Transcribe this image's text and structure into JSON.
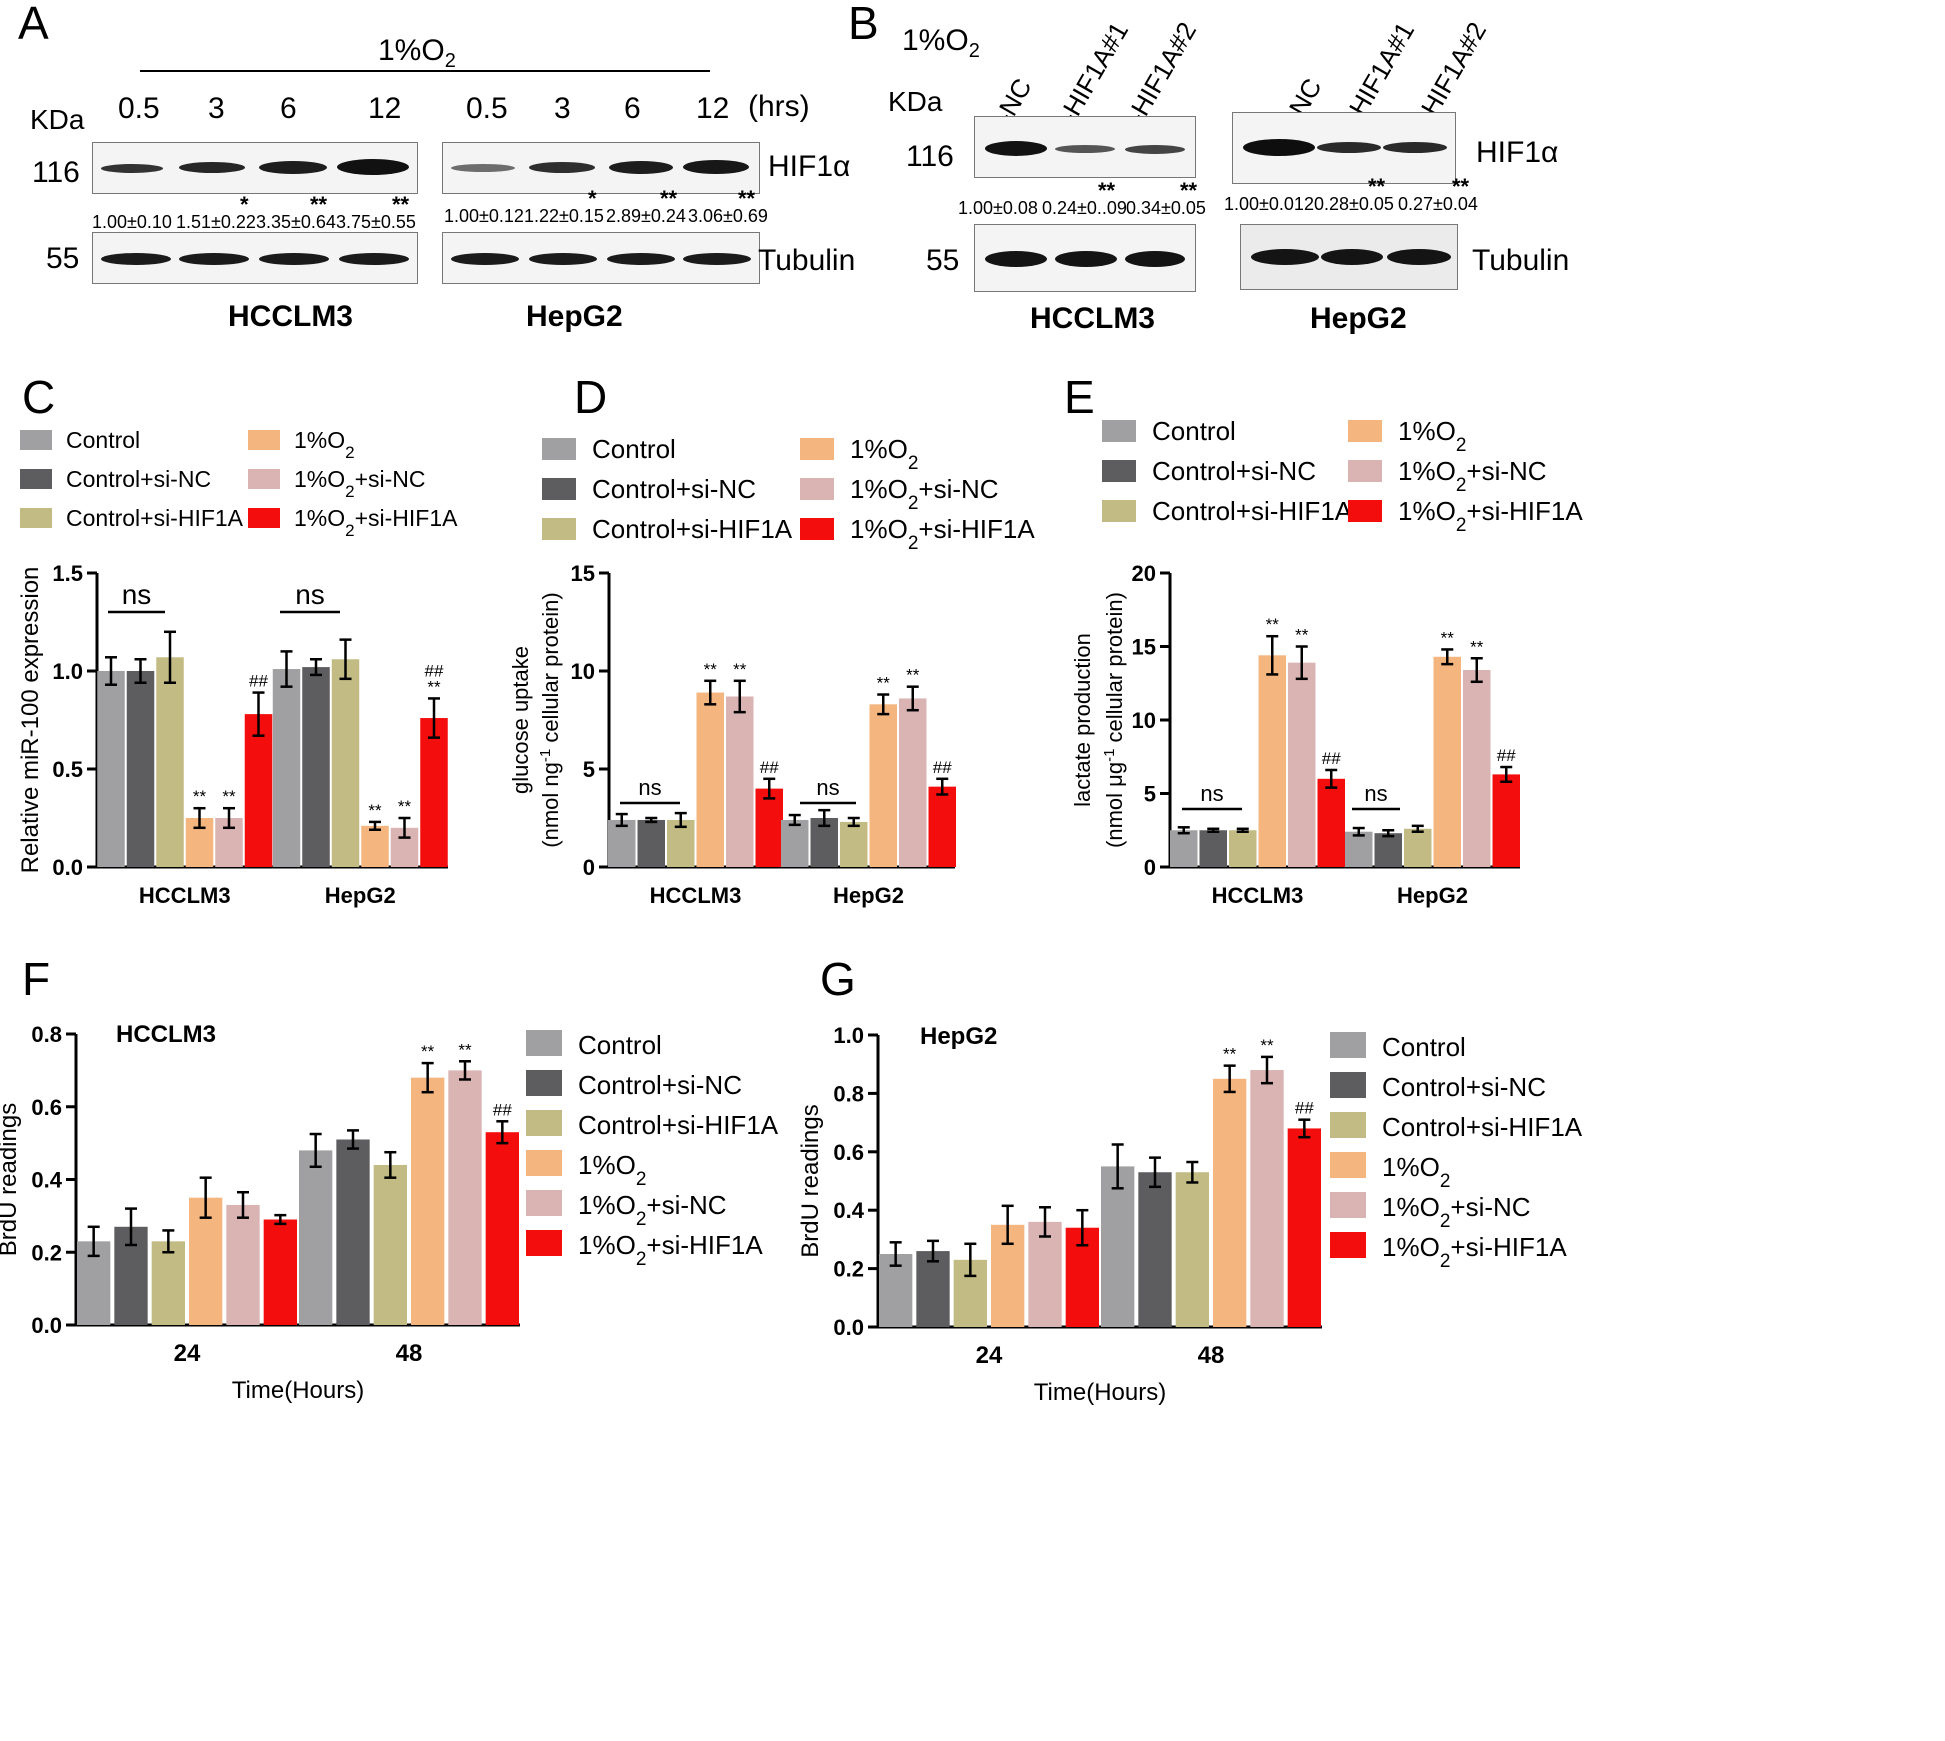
{
  "colors": {
    "Control": "#a0a0a3",
    "Control+si-NC": "#5d5d5f",
    "Control+si-HIF1A": "#c2bc84",
    "1%O2": "#f4b57e",
    "1%O2+si-NC": "#dab3b3",
    "1%O2+si-HIF1A": "#f40d0d"
  },
  "panelA": {
    "letter": "A",
    "condition": "1%O",
    "condition_sub": "2",
    "kda_label": "KDa",
    "hrs_label": "(hrs)",
    "times_hcclm3": [
      "0.5",
      "3",
      "6",
      "12"
    ],
    "times_hepg2": [
      "0.5",
      "3",
      "6",
      "12"
    ],
    "kda_116": "116",
    "kda_55": "55",
    "protein1": "HIF1α",
    "protein2": "Tubulin",
    "quant_hcclm3": [
      "1.00±0.10",
      "1.51±0.22",
      "3.35±0.64",
      "3.75±0.55"
    ],
    "stars_hcclm3": [
      "",
      "*",
      "**",
      "**"
    ],
    "quant_hepg2": [
      "1.00±0.12",
      "1.22±0.15",
      "2.89±0.24",
      "3.06±0.69"
    ],
    "stars_hepg2": [
      "",
      "*",
      "**",
      "**"
    ],
    "cell1": "HCCLM3",
    "cell2": "HepG2"
  },
  "panelB": {
    "letter": "B",
    "condition": "1%O",
    "condition_sub": "2",
    "kda_label": "KDa",
    "lanes_hcclm3": [
      "si-NC",
      "si-HIF1A#1",
      "si-HIF1A#2"
    ],
    "lanes_hepg2": [
      "si-NC",
      "si-HIF1A#1",
      "si-HIF1A#2"
    ],
    "kda_116": "116",
    "kda_55": "55",
    "protein1": "HIF1α",
    "protein2": "Tubulin",
    "quant_hcclm3": [
      "1.00±0.08",
      "0.24±0..09",
      "0.34±0.05"
    ],
    "stars_hcclm3": [
      "",
      "**",
      "**"
    ],
    "quant_hepg2": [
      "1.00±0.012",
      "0.28±0.05",
      "0.27±0.04"
    ],
    "stars_hepg2": [
      "",
      "**",
      "**"
    ],
    "cell1": "HCCLM3",
    "cell2": "HepG2"
  },
  "chart_data": [
    {
      "panel": "C",
      "type": "bar",
      "categories": [
        "HCCLM3",
        "HepG2"
      ],
      "ylabel": "Relative  miR-100 expression",
      "ylim": [
        0,
        1.5
      ],
      "yticks": [
        "0.0",
        "0.5",
        "1.0",
        "1.5"
      ],
      "grid": false,
      "legend_position": "top",
      "legend": [
        {
          "line1": "Control",
          "sub": "",
          "rest": ""
        },
        {
          "line1": "Control+si-NC",
          "sub": "",
          "rest": ""
        },
        {
          "line1": "Control+si-HIF1A",
          "sub": "",
          "rest": ""
        },
        {
          "line1": "1%O",
          "sub": "2",
          "rest": ""
        },
        {
          "line1": "1%O",
          "sub": "2",
          "rest": "+si-NC"
        },
        {
          "line1": "1%O",
          "sub": "2",
          "rest": "+si-HIF1A"
        }
      ],
      "series": [
        {
          "name": "Control",
          "values": [
            1.0,
            1.01
          ],
          "errors": [
            0.07,
            0.09
          ],
          "marks": [
            "",
            ""
          ]
        },
        {
          "name": "Control+si-NC",
          "values": [
            1.0,
            1.02
          ],
          "errors": [
            0.06,
            0.04
          ],
          "marks": [
            "",
            ""
          ]
        },
        {
          "name": "Control+si-HIF1A",
          "values": [
            1.07,
            1.06
          ],
          "errors": [
            0.13,
            0.1
          ],
          "marks": [
            "",
            ""
          ]
        },
        {
          "name": "1%O2",
          "values": [
            0.25,
            0.21
          ],
          "errors": [
            0.05,
            0.02
          ],
          "marks": [
            "**",
            "**"
          ]
        },
        {
          "name": "1%O2+si-NC",
          "values": [
            0.25,
            0.2
          ],
          "errors": [
            0.05,
            0.05
          ],
          "marks": [
            "**",
            "**"
          ]
        },
        {
          "name": "1%O2+si-HIF1A",
          "values": [
            0.78,
            0.76
          ],
          "errors": [
            0.11,
            0.1
          ],
          "marks": [
            "##",
            "##\n**"
          ]
        }
      ],
      "ns": [
        "ns",
        "ns"
      ]
    },
    {
      "panel": "D",
      "type": "bar",
      "categories": [
        "HCCLM3",
        "HepG2"
      ],
      "ylabel_line1": "glucose uptake",
      "ylabel_line2_a": "(nmol ng",
      "ylabel_line2_sup": "-1",
      "ylabel_line2_b": " cellular protein)",
      "ylim": [
        0,
        15
      ],
      "yticks": [
        "0",
        "5",
        "10",
        "15"
      ],
      "grid": false,
      "legend_position": "top",
      "legend": [
        {
          "line1": "Control",
          "sub": "",
          "rest": ""
        },
        {
          "line1": "Control+si-NC",
          "sub": "",
          "rest": ""
        },
        {
          "line1": "Control+si-HIF1A",
          "sub": "",
          "rest": ""
        },
        {
          "line1": "1%O",
          "sub": "2",
          "rest": ""
        },
        {
          "line1": "1%O",
          "sub": "2",
          "rest": "+si-NC"
        },
        {
          "line1": "1%O",
          "sub": "2",
          "rest": "+si-HIF1A"
        }
      ],
      "series": [
        {
          "name": "Control",
          "values": [
            2.4,
            2.4
          ],
          "errors": [
            0.3,
            0.25
          ],
          "marks": [
            "",
            ""
          ]
        },
        {
          "name": "Control+si-NC",
          "values": [
            2.4,
            2.5
          ],
          "errors": [
            0.1,
            0.4
          ],
          "marks": [
            "",
            ""
          ]
        },
        {
          "name": "Control+si-HIF1A",
          "values": [
            2.4,
            2.3
          ],
          "errors": [
            0.35,
            0.2
          ],
          "marks": [
            "",
            ""
          ]
        },
        {
          "name": "1%O2",
          "values": [
            8.9,
            8.3
          ],
          "errors": [
            0.6,
            0.5
          ],
          "marks": [
            "**",
            "**"
          ]
        },
        {
          "name": "1%O2+si-NC",
          "values": [
            8.7,
            8.6
          ],
          "errors": [
            0.8,
            0.6
          ],
          "marks": [
            "**",
            "**"
          ]
        },
        {
          "name": "1%O2+si-HIF1A",
          "values": [
            4.0,
            4.1
          ],
          "errors": [
            0.5,
            0.4
          ],
          "marks": [
            "##",
            "##"
          ]
        }
      ],
      "ns": [
        "ns",
        "ns"
      ]
    },
    {
      "panel": "E",
      "type": "bar",
      "categories": [
        "HCCLM3",
        "HepG2"
      ],
      "ylabel_line1": "lactate production",
      "ylabel_line2_a": "(nmol μg",
      "ylabel_line2_sup": "-1",
      "ylabel_line2_b": " cellular protein)",
      "ylim": [
        0,
        20
      ],
      "yticks": [
        "0",
        "5",
        "10",
        "15",
        "20"
      ],
      "grid": false,
      "legend_position": "top",
      "legend": [
        {
          "line1": "Control",
          "sub": "",
          "rest": ""
        },
        {
          "line1": "Control+si-NC",
          "sub": "",
          "rest": ""
        },
        {
          "line1": "Control+si-HIF1A",
          "sub": "",
          "rest": ""
        },
        {
          "line1": "1%O",
          "sub": "2",
          "rest": ""
        },
        {
          "line1": "1%O",
          "sub": "2",
          "rest": "+si-NC"
        },
        {
          "line1": "1%O",
          "sub": "2",
          "rest": "+si-HIF1A"
        }
      ],
      "series": [
        {
          "name": "Control",
          "values": [
            2.5,
            2.4
          ],
          "errors": [
            0.2,
            0.25
          ],
          "marks": [
            "",
            ""
          ]
        },
        {
          "name": "Control+si-NC",
          "values": [
            2.5,
            2.3
          ],
          "errors": [
            0.1,
            0.2
          ],
          "marks": [
            "",
            ""
          ]
        },
        {
          "name": "Control+si-HIF1A",
          "values": [
            2.5,
            2.6
          ],
          "errors": [
            0.1,
            0.2
          ],
          "marks": [
            "",
            ""
          ]
        },
        {
          "name": "1%O2",
          "values": [
            14.4,
            14.3
          ],
          "errors": [
            1.3,
            0.5
          ],
          "marks": [
            "**",
            "**"
          ]
        },
        {
          "name": "1%O2+si-NC",
          "values": [
            13.9,
            13.4
          ],
          "errors": [
            1.1,
            0.8
          ],
          "marks": [
            "**",
            "**"
          ]
        },
        {
          "name": "1%O2+si-HIF1A",
          "values": [
            6.0,
            6.3
          ],
          "errors": [
            0.6,
            0.5
          ],
          "marks": [
            "##",
            "##"
          ]
        }
      ],
      "ns": [
        "ns",
        "ns"
      ]
    },
    {
      "panel": "F",
      "type": "bar",
      "title": "HCCLM3",
      "categories": [
        "24",
        "48"
      ],
      "xlabel": "Time(Hours)",
      "ylabel": "BrdU readings",
      "ylim": [
        0,
        0.8
      ],
      "yticks": [
        "0.0",
        "0.2",
        "0.4",
        "0.6",
        "0.8"
      ],
      "grid": false,
      "legend_position": "right",
      "legend": [
        {
          "line1": "Control",
          "sub": "",
          "rest": ""
        },
        {
          "line1": "Control+si-NC",
          "sub": "",
          "rest": ""
        },
        {
          "line1": "Control+si-HIF1A",
          "sub": "",
          "rest": ""
        },
        {
          "line1": "1%O",
          "sub": "2",
          "rest": ""
        },
        {
          "line1": "1%O",
          "sub": "2",
          "rest": "+si-NC"
        },
        {
          "line1": "1%O",
          "sub": "2",
          "rest": "+si-HIF1A"
        }
      ],
      "series": [
        {
          "name": "Control",
          "values": [
            0.23,
            0.48
          ],
          "errors": [
            0.04,
            0.045
          ],
          "marks": [
            "",
            ""
          ]
        },
        {
          "name": "Control+si-NC",
          "values": [
            0.27,
            0.51
          ],
          "errors": [
            0.05,
            0.025
          ],
          "marks": [
            "",
            ""
          ]
        },
        {
          "name": "Control+si-HIF1A",
          "values": [
            0.23,
            0.44
          ],
          "errors": [
            0.03,
            0.035
          ],
          "marks": [
            "",
            ""
          ]
        },
        {
          "name": "1%O2",
          "values": [
            0.35,
            0.68
          ],
          "errors": [
            0.055,
            0.04
          ],
          "marks": [
            "",
            "**"
          ]
        },
        {
          "name": "1%O2+si-NC",
          "values": [
            0.33,
            0.7
          ],
          "errors": [
            0.035,
            0.025
          ],
          "marks": [
            "",
            "**"
          ]
        },
        {
          "name": "1%O2+si-HIF1A",
          "values": [
            0.29,
            0.53
          ],
          "errors": [
            0.012,
            0.03
          ],
          "marks": [
            "",
            "##"
          ]
        }
      ]
    },
    {
      "panel": "G",
      "type": "bar",
      "title": "HepG2",
      "categories": [
        "24",
        "48"
      ],
      "xlabel": "Time(Hours)",
      "ylabel": "BrdU readings",
      "ylim": [
        0,
        1.0
      ],
      "yticks": [
        "0.0",
        "0.2",
        "0.4",
        "0.6",
        "0.8",
        "1.0"
      ],
      "grid": false,
      "legend_position": "right",
      "legend": [
        {
          "line1": "Control",
          "sub": "",
          "rest": ""
        },
        {
          "line1": "Control+si-NC",
          "sub": "",
          "rest": ""
        },
        {
          "line1": "Control+si-HIF1A",
          "sub": "",
          "rest": ""
        },
        {
          "line1": "1%O",
          "sub": "2",
          "rest": ""
        },
        {
          "line1": "1%O",
          "sub": "2",
          "rest": "+si-NC"
        },
        {
          "line1": "1%O",
          "sub": "2",
          "rest": "+si-HIF1A"
        }
      ],
      "series": [
        {
          "name": "Control",
          "values": [
            0.25,
            0.55
          ],
          "errors": [
            0.04,
            0.075
          ],
          "marks": [
            "",
            ""
          ]
        },
        {
          "name": "Control+si-NC",
          "values": [
            0.26,
            0.53
          ],
          "errors": [
            0.035,
            0.05
          ],
          "marks": [
            "",
            ""
          ]
        },
        {
          "name": "Control+si-HIF1A",
          "values": [
            0.23,
            0.53
          ],
          "errors": [
            0.055,
            0.035
          ],
          "marks": [
            "",
            ""
          ]
        },
        {
          "name": "1%O2",
          "values": [
            0.35,
            0.85
          ],
          "errors": [
            0.065,
            0.045
          ],
          "marks": [
            "",
            "**"
          ]
        },
        {
          "name": "1%O2+si-NC",
          "values": [
            0.36,
            0.88
          ],
          "errors": [
            0.05,
            0.045
          ],
          "marks": [
            "",
            "**"
          ]
        },
        {
          "name": "1%O2+si-HIF1A",
          "values": [
            0.34,
            0.68
          ],
          "errors": [
            0.06,
            0.03
          ],
          "marks": [
            "",
            "##"
          ]
        }
      ]
    }
  ]
}
